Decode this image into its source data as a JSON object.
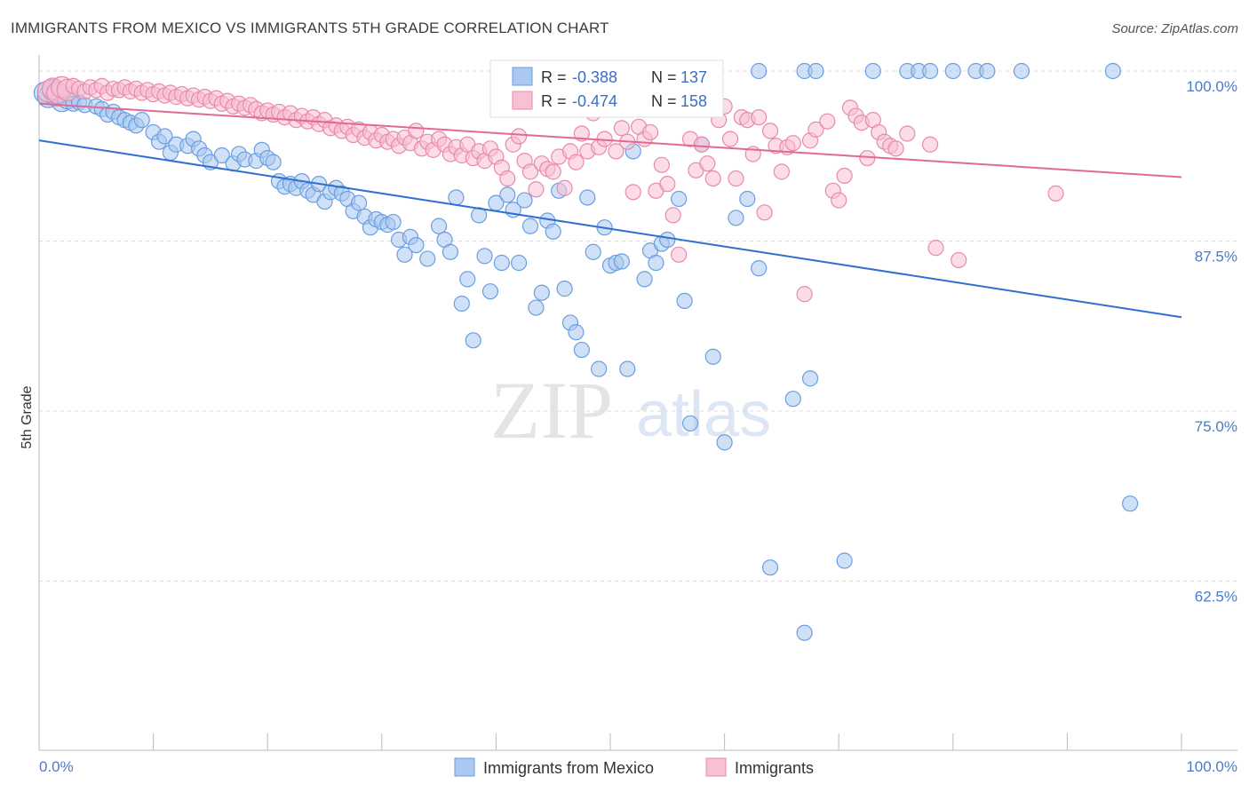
{
  "header": {
    "title": "IMMIGRANTS FROM MEXICO VS IMMIGRANTS 5TH GRADE CORRELATION CHART",
    "source": "Source: ZipAtlas.com"
  },
  "watermark": {
    "zip": "ZIP",
    "atlas": "atlas"
  },
  "stats": {
    "r_label": "R =",
    "n_label": "N =",
    "rows": [
      {
        "r": "-0.388",
        "n": "137",
        "color": "#aac8f0",
        "stroke": "#6a9ee0"
      },
      {
        "r": "-0.474",
        "n": "158",
        "color": "#f8c0d4",
        "stroke": "#e88aac"
      }
    ]
  },
  "chart_data": {
    "type": "scatter",
    "title": "IMMIGRANTS FROM MEXICO VS IMMIGRANTS 5TH GRADE CORRELATION CHART",
    "xlabel": "",
    "ylabel": "5th Grade",
    "xlim": [
      0,
      100
    ],
    "ylim": [
      50,
      101
    ],
    "x_tick_labels": [
      "0.0%",
      "100.0%"
    ],
    "y_ticks": [
      100,
      87.5,
      75,
      62.5
    ],
    "y_tick_labels": [
      "100.0%",
      "87.5%",
      "75.0%",
      "62.5%"
    ],
    "grid": true,
    "legend_position": "bottom-center",
    "series": [
      {
        "name": "Immigrants from Mexico",
        "color": "#aac8f0",
        "stroke": "#6a9ee0",
        "line_color": "#2f6fd0",
        "trend": [
          [
            0,
            94.9
          ],
          [
            100,
            81.9
          ]
        ],
        "points": [
          [
            0.5,
            98.4
          ],
          [
            0.8,
            98.1
          ],
          [
            1.2,
            98.6
          ],
          [
            1.5,
            98.2
          ],
          [
            2,
            97.8
          ],
          [
            2.5,
            98.0
          ],
          [
            3,
            97.6
          ],
          [
            3.5,
            97.7
          ],
          [
            4,
            97.5
          ],
          [
            5,
            97.4
          ],
          [
            5.5,
            97.2
          ],
          [
            6,
            96.8
          ],
          [
            6.5,
            97.0
          ],
          [
            7,
            96.6
          ],
          [
            7.5,
            96.4
          ],
          [
            8,
            96.2
          ],
          [
            8.5,
            96.0
          ],
          [
            9,
            96.4
          ],
          [
            10,
            95.5
          ],
          [
            10.5,
            94.8
          ],
          [
            11,
            95.2
          ],
          [
            11.5,
            94.0
          ],
          [
            12,
            94.6
          ],
          [
            13,
            94.5
          ],
          [
            13.5,
            95.0
          ],
          [
            14,
            94.3
          ],
          [
            14.5,
            93.8
          ],
          [
            15,
            93.3
          ],
          [
            16,
            93.8
          ],
          [
            17,
            93.2
          ],
          [
            17.5,
            93.9
          ],
          [
            18,
            93.5
          ],
          [
            19,
            93.4
          ],
          [
            19.5,
            94.2
          ],
          [
            20,
            93.6
          ],
          [
            20.5,
            93.3
          ],
          [
            21,
            91.9
          ],
          [
            21.5,
            91.5
          ],
          [
            22,
            91.7
          ],
          [
            22.5,
            91.4
          ],
          [
            23,
            91.9
          ],
          [
            23.5,
            91.2
          ],
          [
            24,
            90.9
          ],
          [
            24.5,
            91.7
          ],
          [
            25,
            90.4
          ],
          [
            25.5,
            91.1
          ],
          [
            26,
            91.4
          ],
          [
            26.5,
            91.0
          ],
          [
            27,
            90.6
          ],
          [
            27.5,
            89.7
          ],
          [
            28,
            90.3
          ],
          [
            28.5,
            89.3
          ],
          [
            29,
            88.5
          ],
          [
            29.5,
            89.1
          ],
          [
            30,
            88.9
          ],
          [
            30.5,
            88.7
          ],
          [
            31,
            88.9
          ],
          [
            31.5,
            87.6
          ],
          [
            32,
            86.5
          ],
          [
            32.5,
            87.8
          ],
          [
            33,
            87.2
          ],
          [
            34,
            86.2
          ],
          [
            35,
            88.6
          ],
          [
            35.5,
            87.6
          ],
          [
            36,
            86.7
          ],
          [
            36.5,
            90.7
          ],
          [
            37,
            82.9
          ],
          [
            37.5,
            84.7
          ],
          [
            38,
            80.2
          ],
          [
            38.5,
            89.4
          ],
          [
            39,
            86.4
          ],
          [
            39.5,
            83.8
          ],
          [
            40,
            90.3
          ],
          [
            40.5,
            85.9
          ],
          [
            41,
            90.9
          ],
          [
            41.5,
            89.8
          ],
          [
            42,
            85.9
          ],
          [
            42.5,
            90.5
          ],
          [
            43,
            88.6
          ],
          [
            43.5,
            82.6
          ],
          [
            44,
            83.7
          ],
          [
            44.5,
            89.0
          ],
          [
            45,
            88.2
          ],
          [
            45.5,
            91.2
          ],
          [
            46,
            84.0
          ],
          [
            46.5,
            81.5
          ],
          [
            47,
            80.8
          ],
          [
            47.5,
            79.5
          ],
          [
            48,
            90.7
          ],
          [
            48.5,
            86.7
          ],
          [
            49,
            78.1
          ],
          [
            49.5,
            88.5
          ],
          [
            50,
            85.7
          ],
          [
            50.5,
            85.9
          ],
          [
            51,
            86.0
          ],
          [
            51.5,
            78.1
          ],
          [
            52,
            94.1
          ],
          [
            53,
            84.7
          ],
          [
            53.5,
            86.8
          ],
          [
            54,
            85.9
          ],
          [
            54.5,
            87.3
          ],
          [
            55,
            87.6
          ],
          [
            56,
            90.6
          ],
          [
            56.5,
            83.1
          ],
          [
            57,
            74.1
          ],
          [
            58,
            94.6
          ],
          [
            59,
            79.0
          ],
          [
            60,
            72.7
          ],
          [
            61,
            89.2
          ],
          [
            62,
            90.6
          ],
          [
            63,
            85.5
          ],
          [
            64,
            63.5
          ],
          [
            66,
            75.9
          ],
          [
            67,
            58.7
          ],
          [
            67.5,
            77.4
          ],
          [
            70.5,
            64.0
          ],
          [
            95.5,
            68.2
          ],
          [
            48,
            100
          ],
          [
            51,
            100
          ],
          [
            58,
            100
          ],
          [
            59,
            100
          ],
          [
            63,
            100
          ],
          [
            67,
            100
          ],
          [
            68,
            100
          ],
          [
            73,
            100
          ],
          [
            76,
            100
          ],
          [
            77,
            100
          ],
          [
            78,
            100
          ],
          [
            80,
            100
          ],
          [
            82,
            100
          ],
          [
            83,
            100
          ],
          [
            86,
            100
          ],
          [
            94,
            100
          ]
        ]
      },
      {
        "name": "Immigrants",
        "color": "#f8c0d4",
        "stroke": "#e88aac",
        "line_color": "#e06a92",
        "trend": [
          [
            0,
            97.6
          ],
          [
            100,
            92.2
          ]
        ],
        "points": [
          [
            0.8,
            98.5
          ],
          [
            1.2,
            98.7
          ],
          [
            1.6,
            98.4
          ],
          [
            2,
            98.8
          ],
          [
            2.5,
            98.6
          ],
          [
            3,
            98.9
          ],
          [
            3.5,
            98.7
          ],
          [
            4,
            98.5
          ],
          [
            4.5,
            98.8
          ],
          [
            5,
            98.6
          ],
          [
            5.5,
            98.9
          ],
          [
            6,
            98.4
          ],
          [
            6.5,
            98.7
          ],
          [
            7,
            98.6
          ],
          [
            7.5,
            98.8
          ],
          [
            8,
            98.5
          ],
          [
            8.5,
            98.7
          ],
          [
            9,
            98.4
          ],
          [
            9.5,
            98.6
          ],
          [
            10,
            98.3
          ],
          [
            10.5,
            98.5
          ],
          [
            11,
            98.2
          ],
          [
            11.5,
            98.4
          ],
          [
            12,
            98.1
          ],
          [
            12.5,
            98.3
          ],
          [
            13,
            98.0
          ],
          [
            13.5,
            98.2
          ],
          [
            14,
            97.9
          ],
          [
            14.5,
            98.1
          ],
          [
            15,
            97.8
          ],
          [
            15.5,
            98.0
          ],
          [
            16,
            97.6
          ],
          [
            16.5,
            97.8
          ],
          [
            17,
            97.4
          ],
          [
            17.5,
            97.6
          ],
          [
            18,
            97.3
          ],
          [
            18.5,
            97.5
          ],
          [
            19,
            97.2
          ],
          [
            19.5,
            96.9
          ],
          [
            20,
            97.1
          ],
          [
            20.5,
            96.8
          ],
          [
            21,
            97.0
          ],
          [
            21.5,
            96.6
          ],
          [
            22,
            96.9
          ],
          [
            22.5,
            96.4
          ],
          [
            23,
            96.7
          ],
          [
            23.5,
            96.3
          ],
          [
            24,
            96.6
          ],
          [
            24.5,
            96.1
          ],
          [
            25,
            96.4
          ],
          [
            25.5,
            95.8
          ],
          [
            26,
            96.0
          ],
          [
            26.5,
            95.6
          ],
          [
            27,
            95.9
          ],
          [
            27.5,
            95.3
          ],
          [
            28,
            95.7
          ],
          [
            28.5,
            95.1
          ],
          [
            29,
            95.5
          ],
          [
            29.5,
            94.9
          ],
          [
            30,
            95.3
          ],
          [
            30.5,
            94.8
          ],
          [
            31,
            95.0
          ],
          [
            31.5,
            94.5
          ],
          [
            32,
            95.1
          ],
          [
            32.5,
            94.7
          ],
          [
            33,
            95.6
          ],
          [
            33.5,
            94.3
          ],
          [
            34,
            94.8
          ],
          [
            34.5,
            94.2
          ],
          [
            35,
            95.0
          ],
          [
            35.5,
            94.6
          ],
          [
            36,
            93.9
          ],
          [
            36.5,
            94.4
          ],
          [
            37,
            93.8
          ],
          [
            37.5,
            94.6
          ],
          [
            38,
            93.6
          ],
          [
            38.5,
            94.1
          ],
          [
            39,
            93.4
          ],
          [
            39.5,
            94.3
          ],
          [
            40,
            93.7
          ],
          [
            40.5,
            92.9
          ],
          [
            41,
            92.1
          ],
          [
            41.5,
            94.6
          ],
          [
            42,
            95.2
          ],
          [
            42.5,
            93.4
          ],
          [
            43,
            92.6
          ],
          [
            43.5,
            91.3
          ],
          [
            44,
            93.2
          ],
          [
            44.5,
            92.8
          ],
          [
            45,
            92.6
          ],
          [
            45.5,
            93.7
          ],
          [
            46,
            91.4
          ],
          [
            46.5,
            94.1
          ],
          [
            47,
            93.3
          ],
          [
            47.5,
            95.4
          ],
          [
            48,
            94.1
          ],
          [
            48.5,
            96.9
          ],
          [
            49,
            94.4
          ],
          [
            49.5,
            95.0
          ],
          [
            50,
            97.6
          ],
          [
            50.5,
            94.1
          ],
          [
            51,
            95.8
          ],
          [
            51.5,
            94.8
          ],
          [
            52,
            91.1
          ],
          [
            52.5,
            95.9
          ],
          [
            53,
            95.0
          ],
          [
            53.5,
            95.5
          ],
          [
            54,
            91.2
          ],
          [
            54.5,
            93.1
          ],
          [
            55,
            91.7
          ],
          [
            55.5,
            89.4
          ],
          [
            56,
            86.5
          ],
          [
            57,
            95.0
          ],
          [
            57.5,
            92.7
          ],
          [
            58,
            94.6
          ],
          [
            58.5,
            93.2
          ],
          [
            59,
            92.1
          ],
          [
            59.5,
            96.4
          ],
          [
            60,
            97.4
          ],
          [
            60.5,
            95.0
          ],
          [
            61,
            92.1
          ],
          [
            61.5,
            96.6
          ],
          [
            62,
            96.4
          ],
          [
            62.5,
            93.9
          ],
          [
            63,
            96.6
          ],
          [
            63.5,
            89.6
          ],
          [
            64,
            95.6
          ],
          [
            64.5,
            94.5
          ],
          [
            65,
            92.6
          ],
          [
            65.5,
            94.4
          ],
          [
            66,
            94.7
          ],
          [
            67,
            83.6
          ],
          [
            67.5,
            94.9
          ],
          [
            68,
            95.7
          ],
          [
            69,
            96.3
          ],
          [
            69.5,
            91.2
          ],
          [
            70,
            90.5
          ],
          [
            70.5,
            92.3
          ],
          [
            71,
            97.3
          ],
          [
            71.5,
            96.7
          ],
          [
            72,
            96.2
          ],
          [
            72.5,
            93.6
          ],
          [
            73,
            96.4
          ],
          [
            73.5,
            95.5
          ],
          [
            74,
            94.8
          ],
          [
            74.5,
            94.5
          ],
          [
            75,
            94.3
          ],
          [
            76,
            95.4
          ],
          [
            78,
            94.6
          ],
          [
            78.5,
            87.0
          ],
          [
            80.5,
            86.1
          ],
          [
            89,
            91.0
          ]
        ]
      }
    ]
  },
  "legend": {
    "items": [
      {
        "label": "Immigrants from Mexico",
        "color": "#aac8f0",
        "stroke": "#6a9ee0"
      },
      {
        "label": "Immigrants",
        "color": "#f8c0d4",
        "stroke": "#e88aac"
      }
    ]
  }
}
